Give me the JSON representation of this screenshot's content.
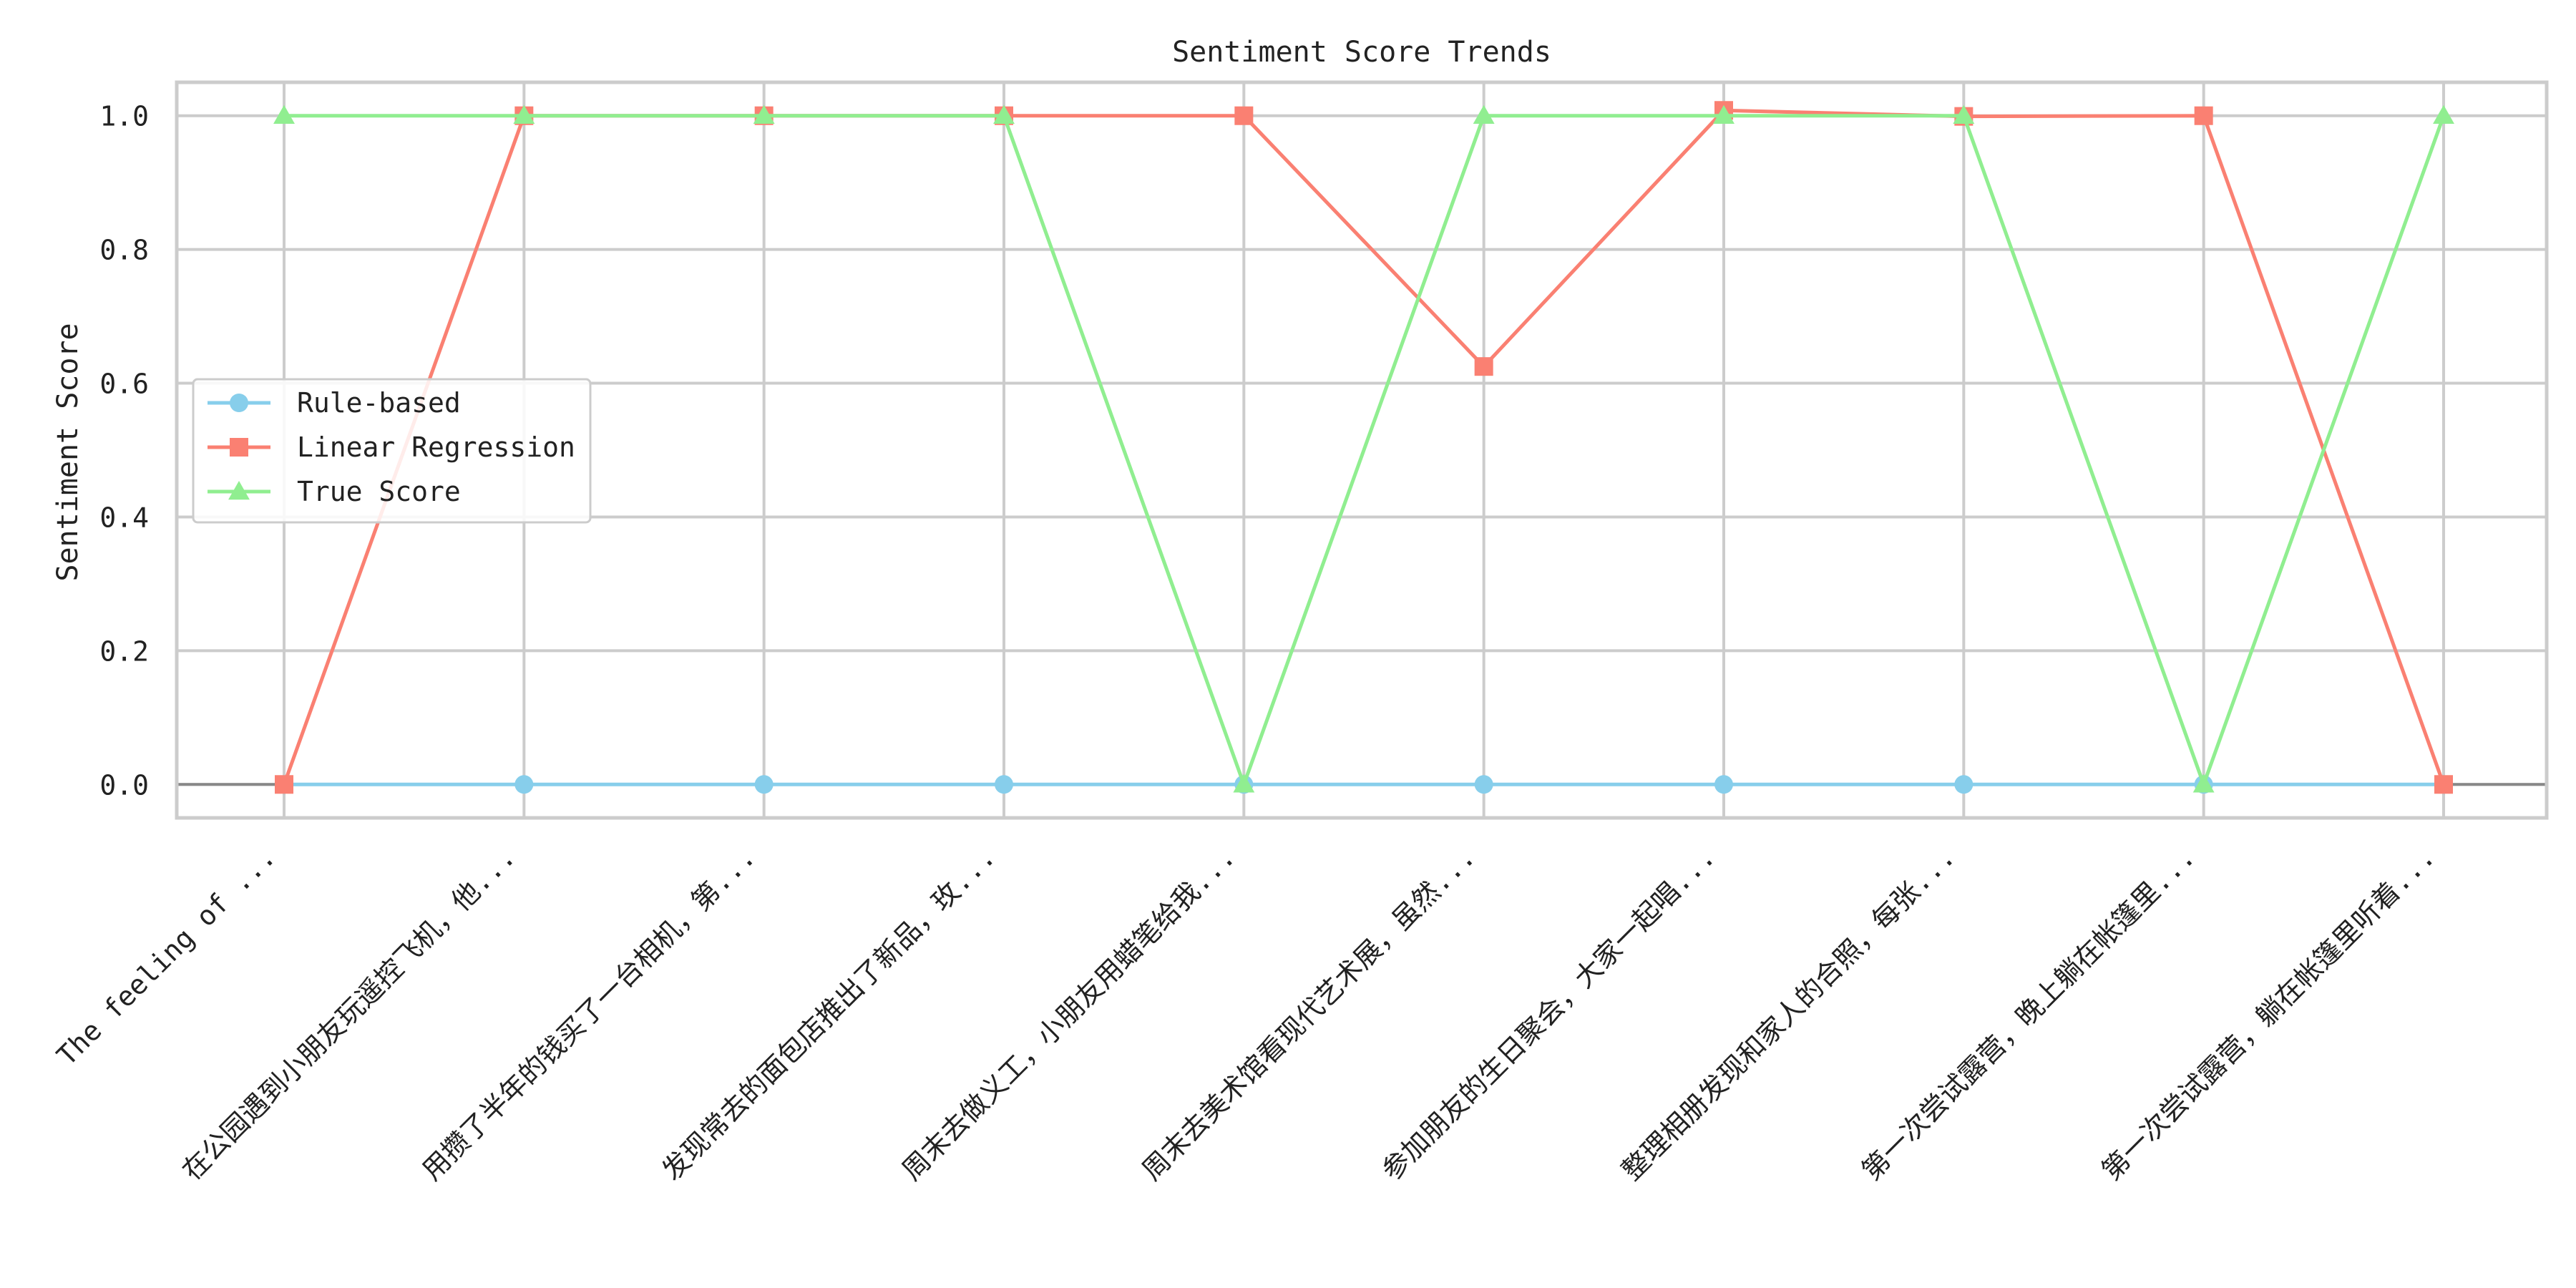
{
  "chart_data": {
    "type": "line",
    "title": "Sentiment Score Trends",
    "xlabel": "",
    "ylabel": "Sentiment Score",
    "ylim": [
      -0.05,
      1.05
    ],
    "yticks": [
      0.0,
      0.2,
      0.4,
      0.6,
      0.8,
      1.0
    ],
    "ytick_labels": [
      "0.0",
      "0.2",
      "0.4",
      "0.6",
      "0.8",
      "1.0"
    ],
    "grid": true,
    "legend_position": "center-left",
    "categories": [
      "The feeling of ...",
      "在公园遇到小朋友玩遥控飞机，他...",
      "用攒了半年的钱买了一台相机，第...",
      "发现常去的面包店推出了新品，玫...",
      "周末去做义工，小朋友用蜡笔给我...",
      "周末去美术馆看现代艺术展，虽然...",
      "参加朋友的生日聚会，大家一起唱...",
      "整理相册发现和家人的合照，每张...",
      "第一次尝试露营，晚上躺在帐篷里...",
      "第一次尝试露营，躺在帐篷里听着..."
    ],
    "series": [
      {
        "name": "Rule-based",
        "color": "#87CEEB",
        "marker": "circle",
        "values": [
          0,
          0,
          0,
          0,
          0,
          0,
          0,
          0,
          0,
          0
        ]
      },
      {
        "name": "Linear Regression",
        "color": "#FA8072",
        "marker": "square",
        "values": [
          0,
          1.0,
          1.0,
          1.0,
          1.0,
          0.625,
          1.008,
          0.999,
          1.0,
          0
        ]
      },
      {
        "name": "True Score",
        "color": "#90EE90",
        "marker": "triangle",
        "values": [
          1,
          1,
          1,
          1,
          0,
          1,
          1,
          1,
          0,
          1
        ]
      }
    ]
  }
}
